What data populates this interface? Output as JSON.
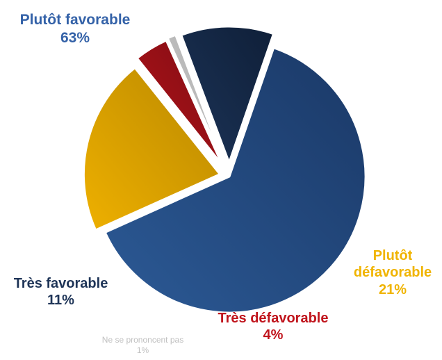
{
  "chart_data": {
    "type": "pie",
    "categories": [
      "Plutôt favorable",
      "Plutôt défavorable",
      "Très défavorable",
      "Ne se prononcent pas",
      "Très favorable"
    ],
    "values": [
      63,
      21,
      4,
      1,
      11
    ],
    "labels": [
      "63%",
      "21%",
      "4%",
      "1%",
      "11%"
    ],
    "start_angle_deg": 71,
    "direction": "clockwise",
    "exploded": true,
    "colors": [
      "#2c5a96",
      "#eeb000",
      "#b3141b",
      "#cfcfcf",
      "#1c3458"
    ],
    "dark_colors": [
      "#1a3866",
      "#b98800",
      "#7e0c12",
      "#a8a8a8",
      "#0f1f38"
    ],
    "label_colors": [
      "#3462a8",
      "#f0b400",
      "#c0141c",
      "#c0c0c0",
      "#1e3457"
    ],
    "legend": "none"
  }
}
